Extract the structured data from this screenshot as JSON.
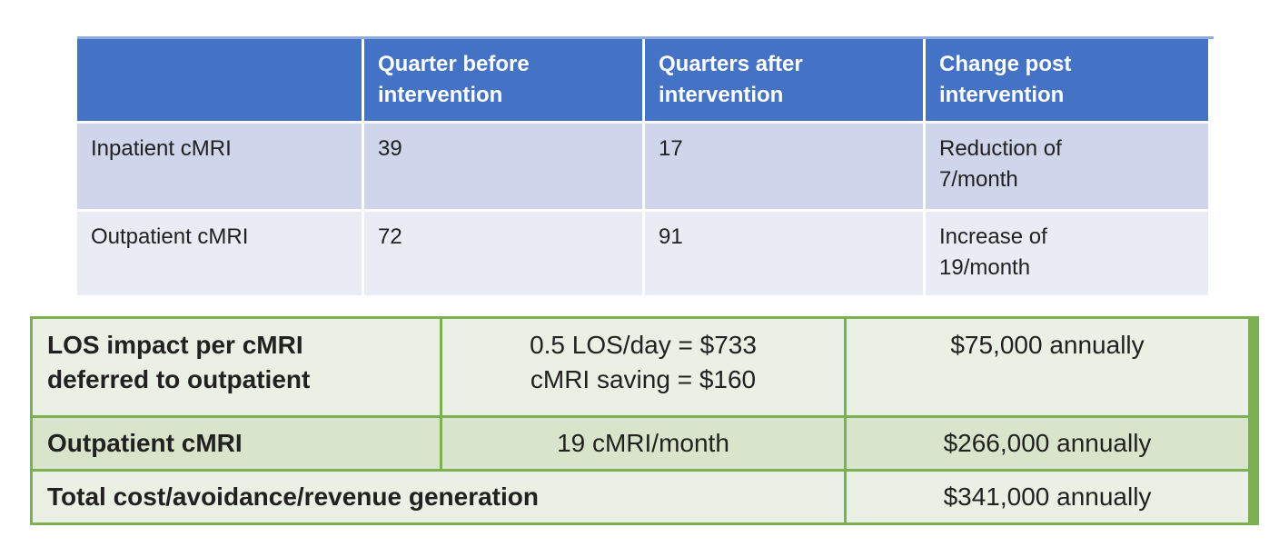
{
  "colors": {
    "header_blue": "#4472C4",
    "header_edge_blue": "#8FAADC",
    "row_band_dark": "#CFD5EA",
    "row_band_light": "#E9EBF5",
    "green_border": "#7CB153",
    "green_cell_light": "#EAF0E4",
    "green_cell_band": "#D9E5CB"
  },
  "top_table": {
    "header": {
      "blank": "",
      "col1": {
        "lines": [
          "Quarter before",
          "intervention"
        ]
      },
      "col2": {
        "lines": [
          "Quarters after",
          "intervention"
        ]
      },
      "col3": {
        "lines": [
          "Change post",
          "intervention"
        ]
      }
    },
    "rows": [
      {
        "label": "Inpatient cMRI",
        "before": "39",
        "after": "17",
        "change": {
          "lines": [
            "Reduction of",
            "7/month"
          ]
        }
      },
      {
        "label": "Outpatient cMRI",
        "before": "72",
        "after": "91",
        "change": {
          "lines": [
            "Increase of",
            "19/month"
          ]
        }
      }
    ]
  },
  "bottom_table": {
    "rows": [
      {
        "label": {
          "lines": [
            "LOS impact per cMRI",
            "deferred to outpatient"
          ]
        },
        "detail": {
          "lines": [
            "0.5 LOS/day = $733",
            "cMRI saving = $160"
          ]
        },
        "amount": "$75,000 annually"
      },
      {
        "label": "Outpatient cMRI",
        "detail": "19 cMRI/month",
        "amount": "$266,000 annually"
      },
      {
        "label": "Total cost/avoidance/revenue generation",
        "amount": "$341,000 annually"
      }
    ]
  }
}
